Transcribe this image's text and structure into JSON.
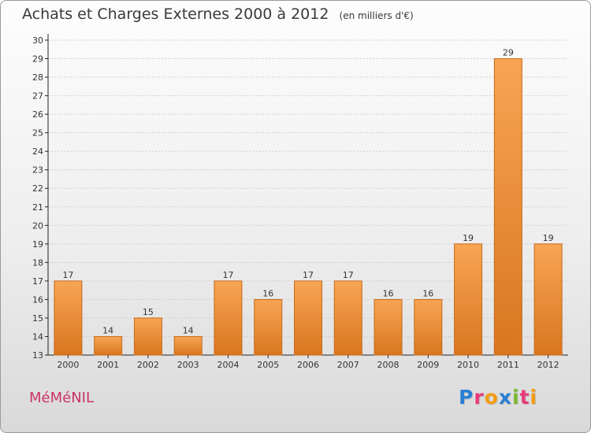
{
  "header": {
    "title": "Achats et Charges Externes 2000 à 2012",
    "unit": "(en milliers d'€)"
  },
  "footer": {
    "town": "MéMéNIL",
    "logo_letters": [
      {
        "ch": "P",
        "color": "#2a7fd4"
      },
      {
        "ch": "r",
        "color": "#e83a7a"
      },
      {
        "ch": "o",
        "color": "#f39c12"
      },
      {
        "ch": "x",
        "color": "#2a7fd4"
      },
      {
        "ch": "i",
        "color": "#7cb82f"
      },
      {
        "ch": "t",
        "color": "#e83a7a"
      },
      {
        "ch": "i",
        "color": "#f39c12"
      }
    ]
  },
  "colors": {
    "bar_light": "#f7a554",
    "bar_dark": "#d9761f",
    "bar_edge": "#c8691a",
    "axis": "#222222",
    "grid": "#cfcfcf",
    "text": "#333333"
  },
  "chart_data": {
    "type": "bar",
    "title": "Achats et Charges Externes 2000 à 2012",
    "ylabel": "",
    "xlabel": "",
    "categories": [
      "2000",
      "2001",
      "2002",
      "2003",
      "2004",
      "2005",
      "2006",
      "2007",
      "2008",
      "2009",
      "2010",
      "2011",
      "2012"
    ],
    "values": [
      17,
      14,
      15,
      14,
      17,
      16,
      17,
      17,
      16,
      16,
      19,
      29,
      19
    ],
    "ylim": [
      13,
      30
    ],
    "yticks": [
      13,
      14,
      15,
      16,
      17,
      18,
      19,
      20,
      21,
      22,
      23,
      24,
      25,
      26,
      27,
      28,
      29,
      30
    ],
    "grid": true,
    "data_labels": true
  }
}
